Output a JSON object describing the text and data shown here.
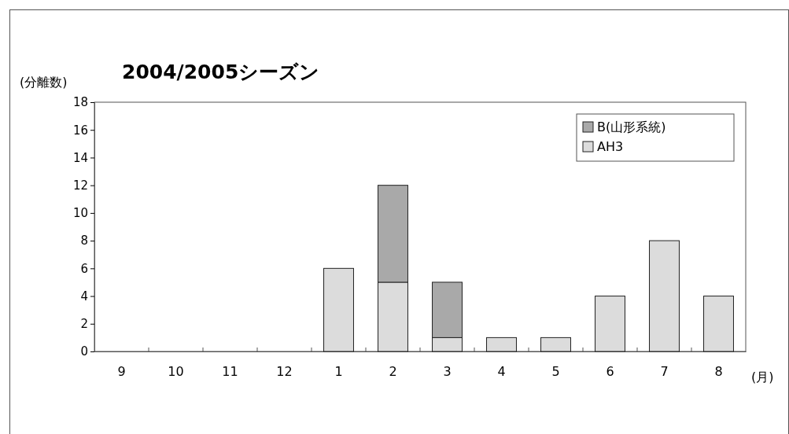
{
  "chart_data": {
    "type": "bar",
    "title": "2004/2005シーズン",
    "ylabel": "(分離数)",
    "xlabel": "(月)",
    "categories": [
      "9",
      "10",
      "11",
      "12",
      "1",
      "2",
      "3",
      "4",
      "5",
      "6",
      "7",
      "8"
    ],
    "series": [
      {
        "name": "AH3",
        "color": "#dcdcdc",
        "values": [
          0,
          0,
          0,
          0,
          6,
          5,
          1,
          1,
          1,
          4,
          8,
          4
        ]
      },
      {
        "name": "B(山形系統)",
        "color": "#a9a9a9",
        "values": [
          0,
          0,
          0,
          0,
          0,
          7,
          4,
          0,
          0,
          0,
          0,
          0
        ]
      }
    ],
    "stacked": true,
    "ylim": [
      0,
      18
    ],
    "yticks": [
      0,
      2,
      4,
      6,
      8,
      10,
      12,
      14,
      16,
      18
    ],
    "grid": false,
    "legend": "top right"
  }
}
